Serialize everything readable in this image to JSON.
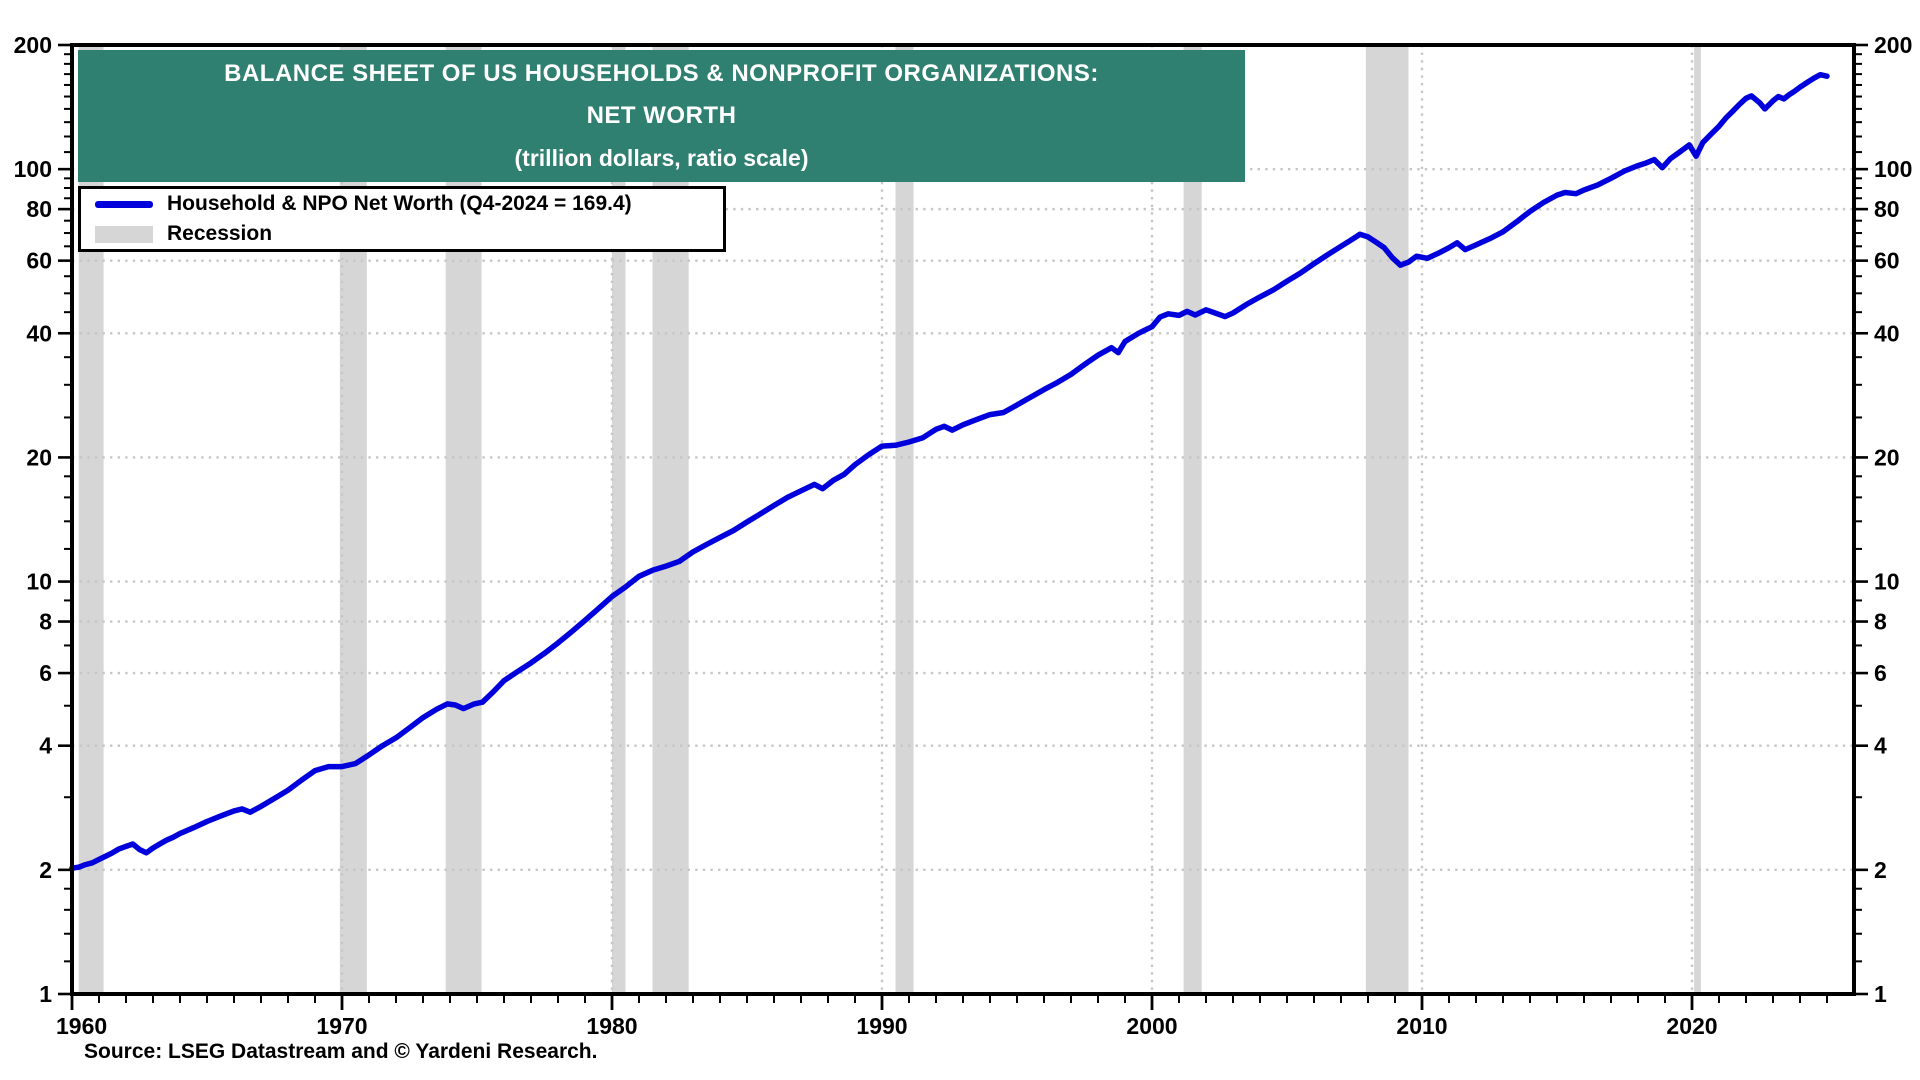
{
  "header": {
    "title_line1": "BALANCE SHEET OF US HOUSEHOLDS & NONPROFIT ORGANIZATIONS:",
    "title_line2": "NET WORTH",
    "title_line3": "(trillion dollars, ratio scale)"
  },
  "legend": {
    "series_label": "Household & NPO Net Worth (Q4-2024 = 169.4)",
    "recession_label": "Recession"
  },
  "source": "Source: LSEG Datastream and © Yardeni Research.",
  "colors": {
    "line": "#0000DC",
    "recession": "#D6D6D6",
    "title_bg": "#2F8070",
    "grid": "#C6C6C6",
    "axis": "#000000",
    "title_text": "#FFFFFF"
  },
  "chart_data": {
    "type": "line",
    "title": "BALANCE SHEET OF US HOUSEHOLDS & NONPROFIT ORGANIZATIONS: NET WORTH (trillion dollars, ratio scale)",
    "y_scale": "log",
    "grid": true,
    "legend_position": "top-left",
    "xlim": [
      1960,
      2026
    ],
    "ylim": [
      1,
      200
    ],
    "x_ticks": [
      1960,
      1970,
      1980,
      1990,
      2000,
      2010,
      2020
    ],
    "y_ticks": [
      200,
      100,
      80,
      60,
      40,
      20,
      10,
      8,
      6,
      4,
      2,
      1
    ],
    "recessions": [
      [
        1960.25,
        1961.17
      ],
      [
        1969.92,
        1970.92
      ],
      [
        1973.84,
        1975.17
      ],
      [
        1980.0,
        1980.5
      ],
      [
        1981.5,
        1982.84
      ],
      [
        1990.5,
        1991.17
      ],
      [
        2001.17,
        2001.84
      ],
      [
        2007.92,
        2009.5
      ],
      [
        2020.08,
        2020.33
      ]
    ],
    "series": [
      {
        "name": "Household & NPO Net Worth (Q4-2024 = 169.4)",
        "last_point_label": "Q4-2024 = 169.4",
        "points": [
          [
            1960.0,
            2.02
          ],
          [
            1960.25,
            2.03
          ],
          [
            1960.5,
            2.06
          ],
          [
            1960.75,
            2.08
          ],
          [
            1961.0,
            2.12
          ],
          [
            1961.25,
            2.16
          ],
          [
            1961.5,
            2.2
          ],
          [
            1961.75,
            2.25
          ],
          [
            1962.0,
            2.28
          ],
          [
            1962.25,
            2.31
          ],
          [
            1962.5,
            2.24
          ],
          [
            1962.75,
            2.2
          ],
          [
            1963.0,
            2.26
          ],
          [
            1963.25,
            2.31
          ],
          [
            1963.5,
            2.36
          ],
          [
            1963.75,
            2.4
          ],
          [
            1964.0,
            2.45
          ],
          [
            1964.5,
            2.53
          ],
          [
            1965.0,
            2.62
          ],
          [
            1965.5,
            2.7
          ],
          [
            1966.0,
            2.78
          ],
          [
            1966.3,
            2.81
          ],
          [
            1966.6,
            2.76
          ],
          [
            1967.0,
            2.85
          ],
          [
            1967.5,
            2.98
          ],
          [
            1968.0,
            3.12
          ],
          [
            1968.5,
            3.3
          ],
          [
            1969.0,
            3.48
          ],
          [
            1969.5,
            3.56
          ],
          [
            1970.0,
            3.56
          ],
          [
            1970.5,
            3.62
          ],
          [
            1971.0,
            3.8
          ],
          [
            1971.5,
            4.0
          ],
          [
            1972.0,
            4.18
          ],
          [
            1972.5,
            4.42
          ],
          [
            1973.0,
            4.68
          ],
          [
            1973.5,
            4.9
          ],
          [
            1973.9,
            5.05
          ],
          [
            1974.2,
            5.02
          ],
          [
            1974.5,
            4.92
          ],
          [
            1974.9,
            5.05
          ],
          [
            1975.2,
            5.1
          ],
          [
            1975.6,
            5.4
          ],
          [
            1976.0,
            5.75
          ],
          [
            1976.5,
            6.05
          ],
          [
            1977.0,
            6.35
          ],
          [
            1977.5,
            6.7
          ],
          [
            1978.0,
            7.1
          ],
          [
            1978.5,
            7.55
          ],
          [
            1979.0,
            8.05
          ],
          [
            1979.5,
            8.6
          ],
          [
            1980.0,
            9.2
          ],
          [
            1980.5,
            9.7
          ],
          [
            1981.0,
            10.3
          ],
          [
            1981.5,
            10.65
          ],
          [
            1982.0,
            10.9
          ],
          [
            1982.5,
            11.2
          ],
          [
            1983.0,
            11.8
          ],
          [
            1983.5,
            12.3
          ],
          [
            1984.0,
            12.8
          ],
          [
            1984.5,
            13.3
          ],
          [
            1985.0,
            13.95
          ],
          [
            1985.5,
            14.6
          ],
          [
            1986.0,
            15.3
          ],
          [
            1986.5,
            16.0
          ],
          [
            1987.0,
            16.6
          ],
          [
            1987.5,
            17.2
          ],
          [
            1987.8,
            16.8
          ],
          [
            1988.2,
            17.6
          ],
          [
            1988.6,
            18.2
          ],
          [
            1989.0,
            19.2
          ],
          [
            1989.5,
            20.3
          ],
          [
            1990.0,
            21.3
          ],
          [
            1990.5,
            21.4
          ],
          [
            1991.0,
            21.8
          ],
          [
            1991.5,
            22.3
          ],
          [
            1992.0,
            23.4
          ],
          [
            1992.3,
            23.8
          ],
          [
            1992.6,
            23.3
          ],
          [
            1993.0,
            24.0
          ],
          [
            1993.5,
            24.7
          ],
          [
            1994.0,
            25.4
          ],
          [
            1994.5,
            25.7
          ],
          [
            1995.0,
            26.8
          ],
          [
            1995.5,
            28.0
          ],
          [
            1996.0,
            29.2
          ],
          [
            1996.5,
            30.4
          ],
          [
            1997.0,
            31.8
          ],
          [
            1997.5,
            33.6
          ],
          [
            1998.0,
            35.4
          ],
          [
            1998.5,
            36.9
          ],
          [
            1998.75,
            35.9
          ],
          [
            1999.0,
            38.2
          ],
          [
            1999.5,
            40.0
          ],
          [
            2000.0,
            41.5
          ],
          [
            2000.3,
            43.8
          ],
          [
            2000.6,
            44.6
          ],
          [
            2001.0,
            44.2
          ],
          [
            2001.3,
            45.2
          ],
          [
            2001.6,
            44.3
          ],
          [
            2002.0,
            45.6
          ],
          [
            2002.3,
            44.9
          ],
          [
            2002.7,
            43.9
          ],
          [
            2003.0,
            44.8
          ],
          [
            2003.5,
            47.0
          ],
          [
            2004.0,
            49.0
          ],
          [
            2004.5,
            51.0
          ],
          [
            2005.0,
            53.5
          ],
          [
            2005.5,
            56.0
          ],
          [
            2006.0,
            59.0
          ],
          [
            2006.5,
            62.0
          ],
          [
            2007.0,
            65.0
          ],
          [
            2007.4,
            67.5
          ],
          [
            2007.7,
            69.5
          ],
          [
            2008.0,
            68.5
          ],
          [
            2008.3,
            66.5
          ],
          [
            2008.6,
            64.5
          ],
          [
            2008.9,
            61.0
          ],
          [
            2009.2,
            58.5
          ],
          [
            2009.5,
            59.5
          ],
          [
            2009.8,
            61.5
          ],
          [
            2010.2,
            60.8
          ],
          [
            2010.6,
            62.5
          ],
          [
            2011.0,
            64.5
          ],
          [
            2011.3,
            66.3
          ],
          [
            2011.6,
            63.8
          ],
          [
            2012.0,
            65.5
          ],
          [
            2012.5,
            67.8
          ],
          [
            2013.0,
            70.5
          ],
          [
            2013.5,
            74.5
          ],
          [
            2014.0,
            79.0
          ],
          [
            2014.5,
            83.0
          ],
          [
            2015.0,
            86.5
          ],
          [
            2015.3,
            87.8
          ],
          [
            2015.7,
            87.2
          ],
          [
            2016.0,
            89.0
          ],
          [
            2016.5,
            91.5
          ],
          [
            2017.0,
            95.0
          ],
          [
            2017.5,
            99.0
          ],
          [
            2018.0,
            102.0
          ],
          [
            2018.3,
            103.5
          ],
          [
            2018.6,
            105.5
          ],
          [
            2018.9,
            100.8
          ],
          [
            2019.2,
            106.0
          ],
          [
            2019.5,
            109.5
          ],
          [
            2019.9,
            114.5
          ],
          [
            2020.15,
            107.5
          ],
          [
            2020.4,
            116.0
          ],
          [
            2020.7,
            121.5
          ],
          [
            2021.0,
            127.0
          ],
          [
            2021.25,
            133.0
          ],
          [
            2021.5,
            138.0
          ],
          [
            2021.75,
            143.5
          ],
          [
            2022.0,
            148.5
          ],
          [
            2022.2,
            150.5
          ],
          [
            2022.5,
            145.0
          ],
          [
            2022.7,
            140.0
          ],
          [
            2023.0,
            146.5
          ],
          [
            2023.2,
            150.0
          ],
          [
            2023.4,
            148.0
          ],
          [
            2023.6,
            151.5
          ],
          [
            2023.8,
            154.5
          ],
          [
            2024.0,
            158.0
          ],
          [
            2024.25,
            162.0
          ],
          [
            2024.5,
            166.0
          ],
          [
            2024.75,
            169.4
          ],
          [
            2025.0,
            168.0
          ]
        ]
      }
    ]
  }
}
